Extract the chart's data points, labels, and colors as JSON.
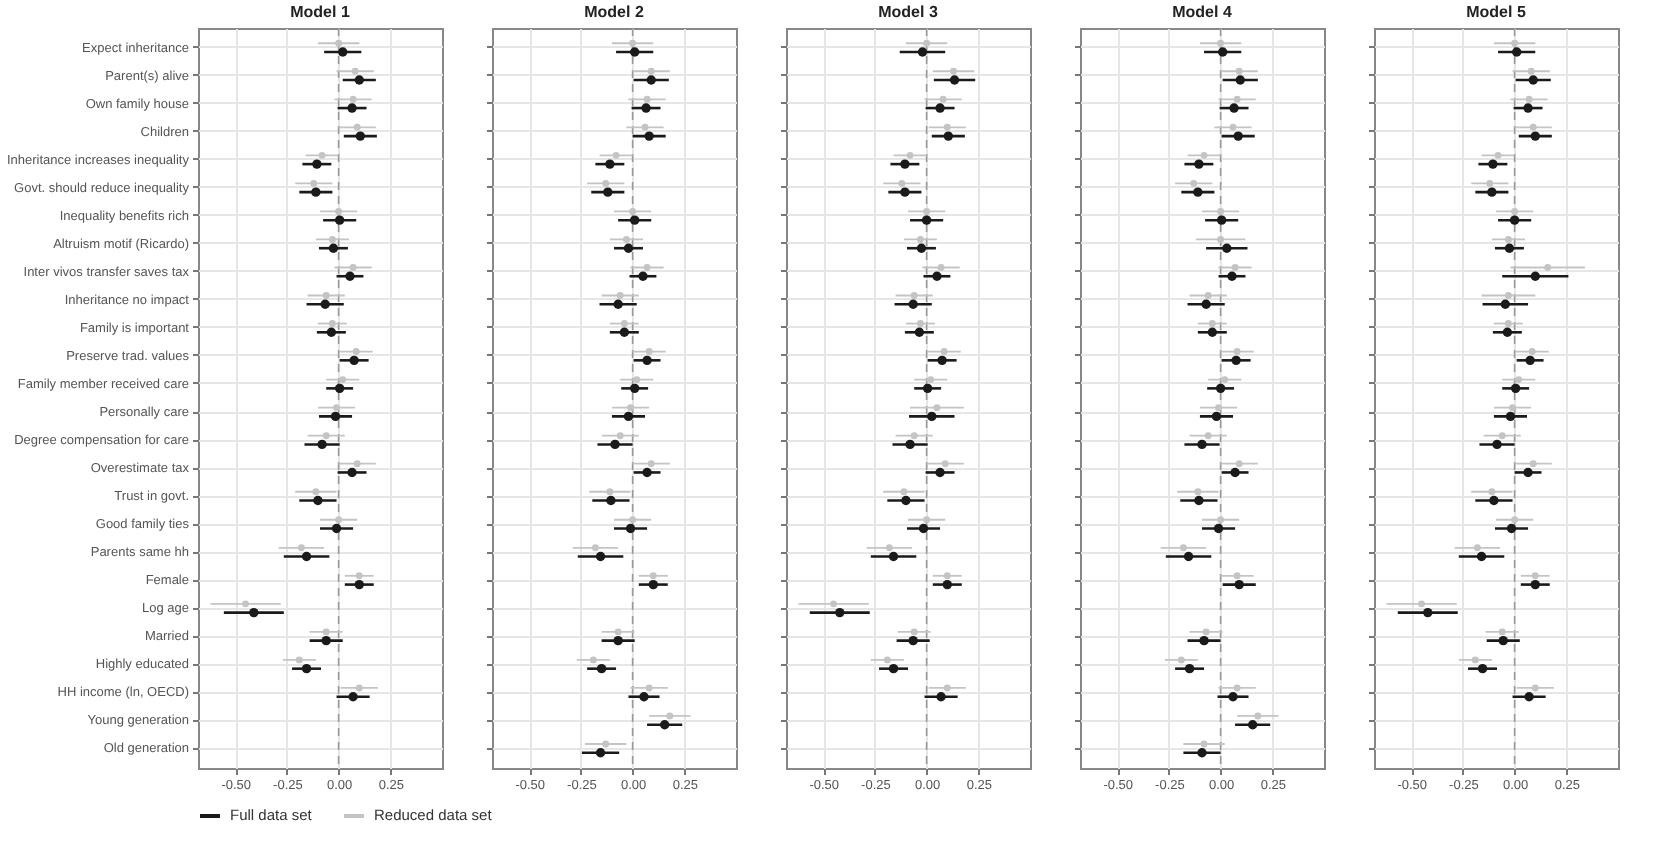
{
  "chart_data": [
    {
      "type": "scatter",
      "orientation": "horizontal",
      "title": "Model 1",
      "categories": [
        "Expect inheritance",
        "Parent(s) alive",
        "Own family house",
        "Children",
        "Inheritance increases inequality",
        "Govt. should reduce inequality",
        "Inequality benefits rich",
        "Altruism motif (Ricardo)",
        "Inter vivos transfer saves tax",
        "Inheritance no impact",
        "Family is important",
        "Preserve trad. values",
        "Family member received care",
        "Personally care",
        "Degree compensation for care",
        "Overestimate tax",
        "Trust in govt.",
        "Good family ties",
        "Parents same hh",
        "Female",
        "Log age",
        "Married",
        "Highly educated",
        "HH income (ln, OECD)",
        "Young generation",
        "Old generation"
      ],
      "series": [
        {
          "name": "Full data set",
          "color": "#1a1a1a",
          "values": [
            0.02,
            0.1,
            0.065,
            0.105,
            -0.105,
            -0.11,
            0.005,
            -0.025,
            0.055,
            -0.065,
            -0.035,
            0.075,
            0.005,
            -0.015,
            -0.08,
            0.065,
            -0.1,
            -0.01,
            -0.155,
            0.1,
            -0.41,
            -0.06,
            -0.155,
            0.07,
            null,
            null
          ],
          "errors": [
            0.09,
            0.08,
            0.07,
            0.08,
            0.07,
            0.08,
            0.08,
            0.07,
            0.065,
            0.09,
            0.07,
            0.07,
            0.065,
            0.08,
            0.085,
            0.07,
            0.09,
            0.08,
            0.11,
            0.07,
            0.145,
            0.08,
            0.07,
            0.08,
            null,
            null
          ]
        },
        {
          "name": "Reduced data set",
          "color": "#c4c4c4",
          "values": [
            0.0,
            0.08,
            0.07,
            0.09,
            -0.08,
            -0.12,
            0.0,
            -0.03,
            0.07,
            -0.06,
            -0.03,
            0.085,
            0.02,
            -0.01,
            -0.06,
            0.09,
            -0.11,
            0.0,
            -0.18,
            0.1,
            -0.45,
            -0.06,
            -0.19,
            0.1,
            null,
            null
          ],
          "errors": [
            0.1,
            0.09,
            0.09,
            0.09,
            0.08,
            0.09,
            0.09,
            0.08,
            0.09,
            0.09,
            0.07,
            0.08,
            0.08,
            0.09,
            0.09,
            0.09,
            0.1,
            0.09,
            0.11,
            0.07,
            0.17,
            0.08,
            0.08,
            0.09,
            null,
            null
          ]
        }
      ],
      "xlim": [
        -0.68,
        0.5
      ],
      "xticks": [
        {
          "value": -0.5,
          "label": "-0.50"
        },
        {
          "value": -0.25,
          "label": "-0.25"
        },
        {
          "value": 0,
          "label": "0.00"
        },
        {
          "value": 0.25,
          "label": "0.25"
        }
      ],
      "grid": true,
      "legend": "bottom",
      "marker": "circle",
      "ref_lines": [
        {
          "axis": "x",
          "value": 0,
          "line_style": "dashed",
          "color": "#999999"
        }
      ]
    },
    {
      "type": "scatter",
      "orientation": "horizontal",
      "title": "Model 2",
      "categories": [
        "Expect inheritance",
        "Parent(s) alive",
        "Own family house",
        "Children",
        "Inheritance increases inequality",
        "Govt. should reduce inequality",
        "Inequality benefits rich",
        "Altruism motif (Ricardo)",
        "Inter vivos transfer saves tax",
        "Inheritance no impact",
        "Family is important",
        "Preserve trad. values",
        "Family member received care",
        "Personally care",
        "Degree compensation for care",
        "Overestimate tax",
        "Trust in govt.",
        "Good family ties",
        "Parents same hh",
        "Female",
        "Log age",
        "Married",
        "Highly educated",
        "HH income (ln, OECD)",
        "Young generation",
        "Old generation"
      ],
      "series": [
        {
          "name": "Full data set",
          "color": "#1a1a1a",
          "values": [
            0.01,
            0.09,
            0.065,
            0.08,
            -0.11,
            -0.12,
            0.01,
            -0.02,
            0.05,
            -0.07,
            -0.04,
            0.07,
            0.01,
            -0.02,
            -0.085,
            0.07,
            -0.105,
            -0.01,
            -0.155,
            0.1,
            null,
            -0.07,
            -0.15,
            0.055,
            0.155,
            -0.155
          ],
          "errors": [
            0.09,
            0.085,
            0.07,
            0.08,
            0.07,
            0.08,
            0.08,
            0.07,
            0.065,
            0.09,
            0.07,
            0.065,
            0.065,
            0.08,
            0.085,
            0.065,
            0.09,
            0.08,
            0.11,
            0.07,
            null,
            0.08,
            0.07,
            0.075,
            0.085,
            0.09
          ]
        },
        {
          "name": "Reduced data set",
          "color": "#c4c4c4",
          "values": [
            0.0,
            0.09,
            0.07,
            0.06,
            -0.08,
            -0.13,
            0.0,
            -0.03,
            0.07,
            -0.06,
            -0.04,
            0.08,
            0.02,
            -0.01,
            -0.06,
            0.09,
            -0.11,
            0.0,
            -0.18,
            0.1,
            null,
            -0.07,
            -0.19,
            0.08,
            0.18,
            -0.13
          ],
          "errors": [
            0.1,
            0.09,
            0.09,
            0.09,
            0.08,
            0.09,
            0.09,
            0.08,
            0.08,
            0.09,
            0.07,
            0.08,
            0.08,
            0.09,
            0.09,
            0.09,
            0.1,
            0.09,
            0.11,
            0.07,
            null,
            0.08,
            0.08,
            0.09,
            0.1,
            0.1
          ]
        }
      ],
      "xlim": [
        -0.68,
        0.5
      ],
      "xticks": [
        {
          "value": -0.5,
          "label": "-0.50"
        },
        {
          "value": -0.25,
          "label": "-0.25"
        },
        {
          "value": 0,
          "label": "0.00"
        },
        {
          "value": 0.25,
          "label": "0.25"
        }
      ],
      "grid": true,
      "marker": "circle",
      "tick_labels": "x",
      "ref_lines": [
        {
          "axis": "x",
          "value": 0,
          "line_style": "dashed",
          "color": "#999999"
        }
      ]
    },
    {
      "type": "scatter",
      "orientation": "horizontal",
      "title": "Model 3",
      "categories": [
        "Expect inheritance",
        "Parent(s) alive",
        "Own family house",
        "Children",
        "Inheritance increases inequality",
        "Govt. should reduce inequality",
        "Inequality benefits rich",
        "Altruism motif (Ricardo)",
        "Inter vivos transfer saves tax",
        "Inheritance no impact",
        "Family is important",
        "Preserve trad. values",
        "Family member received care",
        "Personally care",
        "Degree compensation for care",
        "Overestimate tax",
        "Trust in govt.",
        "Good family ties",
        "Parents same hh",
        "Female",
        "Log age",
        "Married",
        "Highly educated",
        "HH income (ln, OECD)",
        "Young generation",
        "Old generation"
      ],
      "series": [
        {
          "name": "Full data set",
          "color": "#1a1a1a",
          "values": [
            -0.02,
            0.135,
            0.065,
            0.105,
            -0.105,
            -0.105,
            0.0,
            -0.025,
            0.05,
            -0.065,
            -0.035,
            0.075,
            0.005,
            0.025,
            -0.08,
            0.065,
            -0.1,
            -0.015,
            -0.16,
            0.1,
            -0.42,
            -0.065,
            -0.16,
            0.07,
            null,
            null
          ],
          "errors": [
            0.11,
            0.1,
            0.07,
            0.08,
            0.07,
            0.08,
            0.08,
            0.07,
            0.065,
            0.09,
            0.07,
            0.07,
            0.065,
            0.11,
            0.085,
            0.07,
            0.09,
            0.08,
            0.11,
            0.07,
            0.145,
            0.08,
            0.07,
            0.08,
            null,
            null
          ]
        },
        {
          "name": "Reduced data set",
          "color": "#c4c4c4",
          "values": [
            0.0,
            0.13,
            0.08,
            0.1,
            -0.08,
            -0.12,
            0.0,
            -0.03,
            0.07,
            -0.06,
            -0.03,
            0.085,
            0.02,
            0.05,
            -0.06,
            0.09,
            -0.11,
            0.0,
            -0.18,
            0.1,
            -0.45,
            -0.06,
            -0.19,
            0.1,
            null,
            null
          ],
          "errors": [
            0.1,
            0.1,
            0.09,
            0.09,
            0.08,
            0.09,
            0.09,
            0.08,
            0.09,
            0.09,
            0.07,
            0.08,
            0.08,
            0.13,
            0.09,
            0.09,
            0.1,
            0.09,
            0.11,
            0.07,
            0.17,
            0.08,
            0.08,
            0.09,
            null,
            null
          ]
        }
      ],
      "xlim": [
        -0.68,
        0.5
      ],
      "xticks": [
        {
          "value": -0.5,
          "label": "-0.50"
        },
        {
          "value": -0.25,
          "label": "-0.25"
        },
        {
          "value": 0,
          "label": "0.00"
        },
        {
          "value": 0.25,
          "label": "0.25"
        }
      ],
      "grid": true,
      "marker": "circle",
      "tick_labels": "x",
      "ref_lines": [
        {
          "axis": "x",
          "value": 0,
          "line_style": "dashed",
          "color": "#999999"
        }
      ]
    },
    {
      "type": "scatter",
      "orientation": "horizontal",
      "title": "Model 4",
      "categories": [
        "Expect inheritance",
        "Parent(s) alive",
        "Own family house",
        "Children",
        "Inheritance increases inequality",
        "Govt. should reduce inequality",
        "Inequality benefits rich",
        "Altruism motif (Ricardo)",
        "Inter vivos transfer saves tax",
        "Inheritance no impact",
        "Family is important",
        "Preserve trad. values",
        "Family member received care",
        "Personally care",
        "Degree compensation for care",
        "Overestimate tax",
        "Trust in govt.",
        "Good family ties",
        "Parents same hh",
        "Female",
        "Log age",
        "Married",
        "Highly educated",
        "HH income (ln, OECD)",
        "Young generation",
        "Old generation"
      ],
      "series": [
        {
          "name": "Full data set",
          "color": "#1a1a1a",
          "values": [
            0.01,
            0.095,
            0.065,
            0.085,
            -0.105,
            -0.11,
            0.005,
            0.03,
            0.055,
            -0.07,
            -0.04,
            0.075,
            0.0,
            -0.02,
            -0.09,
            0.07,
            -0.105,
            -0.01,
            -0.155,
            0.09,
            null,
            -0.08,
            -0.15,
            0.06,
            0.155,
            -0.09
          ],
          "errors": [
            0.09,
            0.085,
            0.07,
            0.08,
            0.07,
            0.08,
            0.08,
            0.1,
            0.065,
            0.09,
            0.07,
            0.07,
            0.065,
            0.08,
            0.085,
            0.065,
            0.09,
            0.08,
            0.11,
            0.08,
            null,
            0.08,
            0.07,
            0.075,
            0.085,
            0.09
          ]
        },
        {
          "name": "Reduced data set",
          "color": "#c4c4c4",
          "values": [
            0.0,
            0.09,
            0.08,
            0.06,
            -0.08,
            -0.13,
            0.0,
            0.0,
            0.07,
            -0.06,
            -0.04,
            0.08,
            0.02,
            -0.01,
            -0.06,
            0.09,
            -0.11,
            0.0,
            -0.18,
            0.08,
            null,
            -0.07,
            -0.19,
            0.08,
            0.18,
            -0.08
          ],
          "errors": [
            0.1,
            0.09,
            0.09,
            0.09,
            0.08,
            0.09,
            0.09,
            0.12,
            0.08,
            0.09,
            0.07,
            0.08,
            0.08,
            0.09,
            0.09,
            0.09,
            0.1,
            0.09,
            0.11,
            0.08,
            null,
            0.08,
            0.08,
            0.09,
            0.1,
            0.1
          ]
        }
      ],
      "xlim": [
        -0.68,
        0.5
      ],
      "xticks": [
        {
          "value": -0.5,
          "label": "-0.50"
        },
        {
          "value": -0.25,
          "label": "-0.25"
        },
        {
          "value": 0,
          "label": "0.00"
        },
        {
          "value": 0.25,
          "label": "0.25"
        }
      ],
      "grid": true,
      "marker": "circle",
      "tick_labels": "x",
      "ref_lines": [
        {
          "axis": "x",
          "value": 0,
          "line_style": "dashed",
          "color": "#999999"
        }
      ]
    },
    {
      "type": "scatter",
      "orientation": "horizontal",
      "title": "Model 5",
      "categories": [
        "Expect inheritance",
        "Parent(s) alive",
        "Own family house",
        "Children",
        "Inheritance increases inequality",
        "Govt. should reduce inequality",
        "Inequality benefits rich",
        "Altruism motif (Ricardo)",
        "Inter vivos transfer saves tax",
        "Inheritance no impact",
        "Family is important",
        "Preserve trad. values",
        "Family member received care",
        "Personally care",
        "Degree compensation for care",
        "Overestimate tax",
        "Trust in govt.",
        "Good family ties",
        "Parents same hh",
        "Female",
        "Log age",
        "Married",
        "Highly educated",
        "HH income (ln, OECD)",
        "Young generation",
        "Old generation"
      ],
      "series": [
        {
          "name": "Full data set",
          "color": "#1a1a1a",
          "values": [
            0.01,
            0.09,
            0.065,
            0.1,
            -0.105,
            -0.11,
            0.0,
            -0.025,
            0.1,
            -0.045,
            -0.035,
            0.075,
            0.005,
            -0.02,
            -0.085,
            0.065,
            -0.1,
            -0.015,
            -0.16,
            0.1,
            -0.42,
            -0.055,
            -0.155,
            0.07,
            null,
            null
          ],
          "errors": [
            0.09,
            0.085,
            0.07,
            0.08,
            0.07,
            0.08,
            0.08,
            0.07,
            0.16,
            0.11,
            0.07,
            0.065,
            0.065,
            0.08,
            0.085,
            0.065,
            0.09,
            0.08,
            0.11,
            0.07,
            0.145,
            0.08,
            0.07,
            0.08,
            null,
            null
          ]
        },
        {
          "name": "Reduced data set",
          "color": "#c4c4c4",
          "values": [
            0.0,
            0.08,
            0.07,
            0.09,
            -0.08,
            -0.12,
            0.0,
            -0.03,
            0.16,
            -0.03,
            -0.03,
            0.085,
            0.02,
            -0.01,
            -0.06,
            0.09,
            -0.11,
            0.0,
            -0.18,
            0.1,
            -0.45,
            -0.06,
            -0.19,
            0.1,
            null,
            null
          ],
          "errors": [
            0.1,
            0.09,
            0.09,
            0.09,
            0.08,
            0.09,
            0.09,
            0.08,
            0.18,
            0.13,
            0.07,
            0.08,
            0.08,
            0.09,
            0.09,
            0.09,
            0.1,
            0.09,
            0.11,
            0.07,
            0.17,
            0.08,
            0.08,
            0.09,
            null,
            null
          ]
        }
      ],
      "xlim": [
        -0.68,
        0.5
      ],
      "xticks": [
        {
          "value": -0.5,
          "label": "-0.50"
        },
        {
          "value": -0.25,
          "label": "-0.25"
        },
        {
          "value": 0,
          "label": "0.00"
        },
        {
          "value": 0.25,
          "label": "0.25"
        }
      ],
      "grid": true,
      "marker": "circle",
      "tick_labels": "x",
      "ref_lines": [
        {
          "axis": "x",
          "value": 0,
          "line_style": "dashed",
          "color": "#999999"
        }
      ]
    }
  ]
}
